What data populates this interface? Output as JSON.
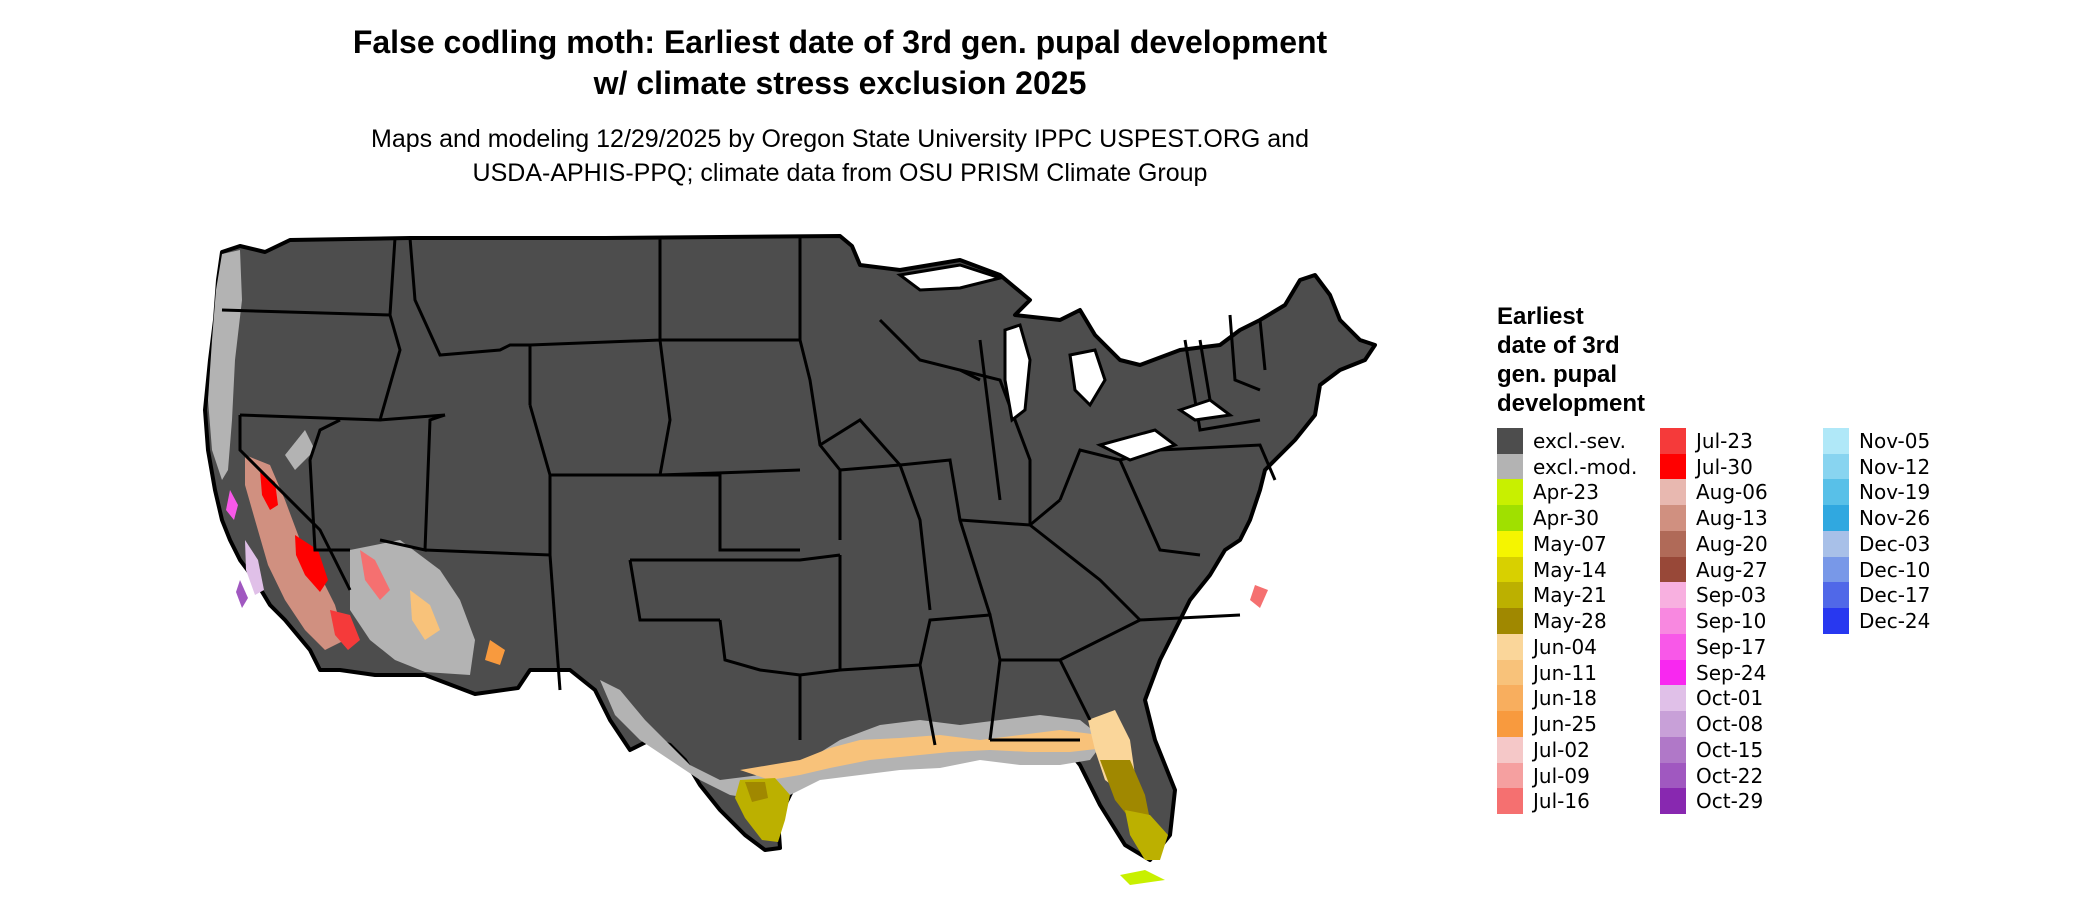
{
  "map": {
    "title_line1": "False codling moth: Earliest date of 3rd gen. pupal development",
    "title_line2": "w/ climate stress exclusion 2025",
    "subtitle_line1": "Maps and modeling 12/29/2025 by Oregon State University IPPC USPEST.ORG and",
    "subtitle_line2": "USDA-APHIS-PPQ; climate data from OSU PRISM Climate Group",
    "region": "Contiguous United States",
    "colors": {
      "excluded_severe": "#4d4d4d",
      "excluded_moderate": "#b3b3b3",
      "state_border": "#000000",
      "background": "#ffffff"
    }
  },
  "legend": {
    "title_lines": [
      "Earliest",
      "date of 3rd",
      "gen. pupal",
      "development"
    ],
    "columns": [
      [
        {
          "label": "excl.-sev.",
          "color": "#4d4d4d"
        },
        {
          "label": "excl.-mod.",
          "color": "#b3b3b3"
        },
        {
          "label": "Apr-23",
          "color": "#c8f000"
        },
        {
          "label": "Apr-30",
          "color": "#a0e000"
        },
        {
          "label": "May-07",
          "color": "#f5f500"
        },
        {
          "label": "May-14",
          "color": "#d8d000"
        },
        {
          "label": "May-21",
          "color": "#bcb000"
        },
        {
          "label": "May-28",
          "color": "#a08800"
        },
        {
          "label": "Jun-04",
          "color": "#fad69a"
        },
        {
          "label": "Jun-11",
          "color": "#f8c27a"
        },
        {
          "label": "Jun-18",
          "color": "#f8ae5e"
        },
        {
          "label": "Jun-25",
          "color": "#f89a3e"
        },
        {
          "label": "Jul-02",
          "color": "#f5c8c8"
        },
        {
          "label": "Jul-09",
          "color": "#f5a0a0"
        },
        {
          "label": "Jul-16",
          "color": "#f57070"
        }
      ],
      [
        {
          "label": "Jul-23",
          "color": "#f53a3a"
        },
        {
          "label": "Jul-30",
          "color": "#ff0000"
        },
        {
          "label": "Aug-06",
          "color": "#e8b8b0"
        },
        {
          "label": "Aug-13",
          "color": "#d09080"
        },
        {
          "label": "Aug-20",
          "color": "#b06a58"
        },
        {
          "label": "Aug-27",
          "color": "#984838"
        },
        {
          "label": "Sep-03",
          "color": "#f8b0e0"
        },
        {
          "label": "Sep-10",
          "color": "#f888e0"
        },
        {
          "label": "Sep-17",
          "color": "#f858e8"
        },
        {
          "label": "Sep-24",
          "color": "#f828f0"
        },
        {
          "label": "Oct-01",
          "color": "#e0c0e8"
        },
        {
          "label": "Oct-08",
          "color": "#c8a0d8"
        },
        {
          "label": "Oct-15",
          "color": "#b078c8"
        },
        {
          "label": "Oct-22",
          "color": "#a058c0"
        },
        {
          "label": "Oct-29",
          "color": "#8828b0"
        }
      ],
      [
        {
          "label": "Nov-05",
          "color": "#b0e8f8"
        },
        {
          "label": "Nov-12",
          "color": "#88d4f0"
        },
        {
          "label": "Nov-19",
          "color": "#58c0e8"
        },
        {
          "label": "Nov-26",
          "color": "#30a8e0"
        },
        {
          "label": "Dec-03",
          "color": "#a8c0e8"
        },
        {
          "label": "Dec-10",
          "color": "#7898e8"
        },
        {
          "label": "Dec-17",
          "color": "#5068e8"
        },
        {
          "label": "Dec-24",
          "color": "#2838f0"
        }
      ]
    ]
  }
}
